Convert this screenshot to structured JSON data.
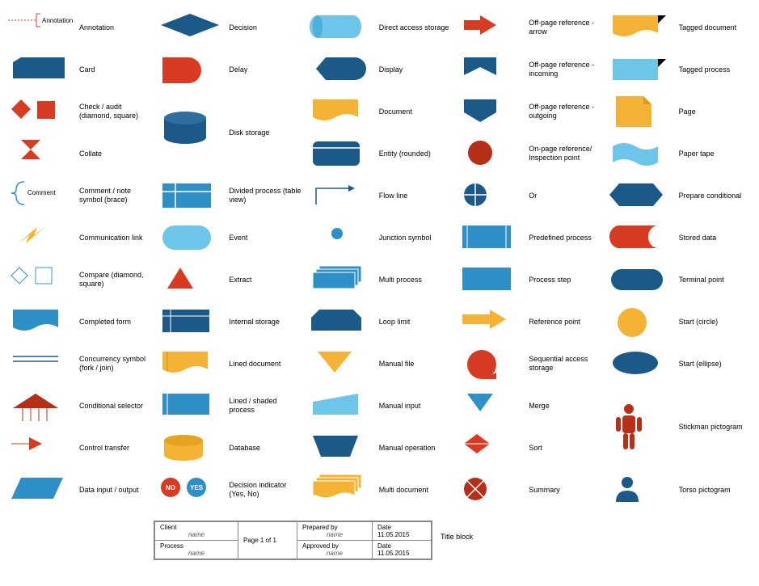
{
  "colors": {
    "darkBlue": "#1b5a88",
    "midBlue": "#2f8fc7",
    "lightBlue": "#6ec5ea",
    "orange": "#f4b334",
    "red": "#d73b21",
    "darkRed": "#b62f19",
    "stroke": "#0d4468"
  },
  "shapes": [
    [
      {
        "label": "Annotation",
        "svg": "annotation"
      },
      {
        "label": "Decision",
        "svg": "decision"
      },
      {
        "label": "Direct access storage",
        "svg": "direct-access"
      },
      {
        "label": "Off-page reference - arrow",
        "svg": "offpage-arrow"
      },
      {
        "label": "Tagged document",
        "svg": "tagged-document"
      }
    ],
    [
      {
        "label": "Card",
        "svg": "card"
      },
      {
        "label": "Delay",
        "svg": "delay"
      },
      {
        "label": "Display",
        "svg": "display"
      },
      {
        "label": "Off-page reference - incoming",
        "svg": "offpage-in"
      },
      {
        "label": "Tagged process",
        "svg": "tagged-process"
      }
    ],
    [
      {
        "label": "Check / audit (diamond, square)",
        "svg": "check-audit"
      },
      {
        "label": "Disk storage",
        "svg": "disk-storage",
        "rowspan": true
      },
      {
        "label": "Document",
        "svg": "document"
      },
      {
        "label": "Off-page reference - outgoing",
        "svg": "offpage-out"
      },
      {
        "label": "Page",
        "svg": "page"
      }
    ],
    [
      {
        "label": "Collate",
        "svg": "collate"
      },
      {
        "skip": true
      },
      {
        "label": "Entity (rounded)",
        "svg": "entity"
      },
      {
        "label": "On-page reference/ Inspection point",
        "svg": "onpage-ref"
      },
      {
        "label": "Paper tape",
        "svg": "paper-tape"
      }
    ],
    [
      {
        "label": "Comment / note symbol (brace)",
        "svg": "comment"
      },
      {
        "label": "Divided process (table view)",
        "svg": "divided-process"
      },
      {
        "label": "Flow line",
        "svg": "flow-line"
      },
      {
        "label": "Or",
        "svg": "or"
      },
      {
        "label": "Prepare conditional",
        "svg": "prepare-cond"
      }
    ],
    [
      {
        "label": "Communication link",
        "svg": "comm-link"
      },
      {
        "label": "Event",
        "svg": "event"
      },
      {
        "label": "Junction symbol",
        "svg": "junction"
      },
      {
        "label": "Predefined process",
        "svg": "predef-process"
      },
      {
        "label": "Stored data",
        "svg": "stored-data"
      }
    ],
    [
      {
        "label": "Compare (diamond, square)",
        "svg": "compare"
      },
      {
        "label": "Extract",
        "svg": "extract"
      },
      {
        "label": "Multi process",
        "svg": "multi-process"
      },
      {
        "label": "Process step",
        "svg": "process-step"
      },
      {
        "label": "Terminal point",
        "svg": "terminal"
      }
    ],
    [
      {
        "label": "Completed form",
        "svg": "completed-form"
      },
      {
        "label": "Internal storage",
        "svg": "internal-storage"
      },
      {
        "label": "Loop limit",
        "svg": "loop-limit"
      },
      {
        "label": "Reference point",
        "svg": "reference-point"
      },
      {
        "label": "Start (circle)",
        "svg": "start-circle"
      }
    ],
    [
      {
        "label": "Concurrency symbol (fork / join)",
        "svg": "concurrency"
      },
      {
        "label": "Lined document",
        "svg": "lined-doc"
      },
      {
        "label": "Manual file",
        "svg": "manual-file"
      },
      {
        "label": "Sequential access storage",
        "svg": "seq-access"
      },
      {
        "label": "Start (ellipse)",
        "svg": "start-ellipse"
      }
    ],
    [
      {
        "label": "Conditional selector",
        "svg": "cond-selector"
      },
      {
        "label": "Lined / shaded process",
        "svg": "lined-process"
      },
      {
        "label": "Manual input",
        "svg": "manual-input"
      },
      {
        "label": "Merge",
        "svg": "merge"
      },
      {
        "label": "Stickman pictogram",
        "svg": "stickman",
        "rowspan": true
      }
    ],
    [
      {
        "label": "Control transfer",
        "svg": "control-transfer"
      },
      {
        "label": "Database",
        "svg": "database"
      },
      {
        "label": "Manual operation",
        "svg": "manual-op"
      },
      {
        "label": "Sort",
        "svg": "sort"
      },
      {
        "skip": true
      }
    ],
    [
      {
        "label": "Data input / output",
        "svg": "data-io"
      },
      {
        "label": "Decision indicator (Yes, No)",
        "svg": "decision-ind"
      },
      {
        "label": "Multi document",
        "svg": "multi-doc"
      },
      {
        "label": "Summary",
        "svg": "summary"
      },
      {
        "label": "Torso pictogram",
        "svg": "torso"
      }
    ]
  ],
  "titleBlock": {
    "label": "Title block",
    "client": "Client",
    "clientVal": "name",
    "page": "Page 1  of  1",
    "prepared": "Prepared by",
    "preparedVal": "name",
    "date": "Date",
    "dateVal": "11.05.2015",
    "process": "Process",
    "processVal": "name",
    "approved": "Approved by",
    "approvedVal": "name"
  },
  "decisionIndicator": {
    "no": "NO",
    "yes": "YES"
  },
  "annotationWord": "Annotation",
  "commentWord": "Comment"
}
